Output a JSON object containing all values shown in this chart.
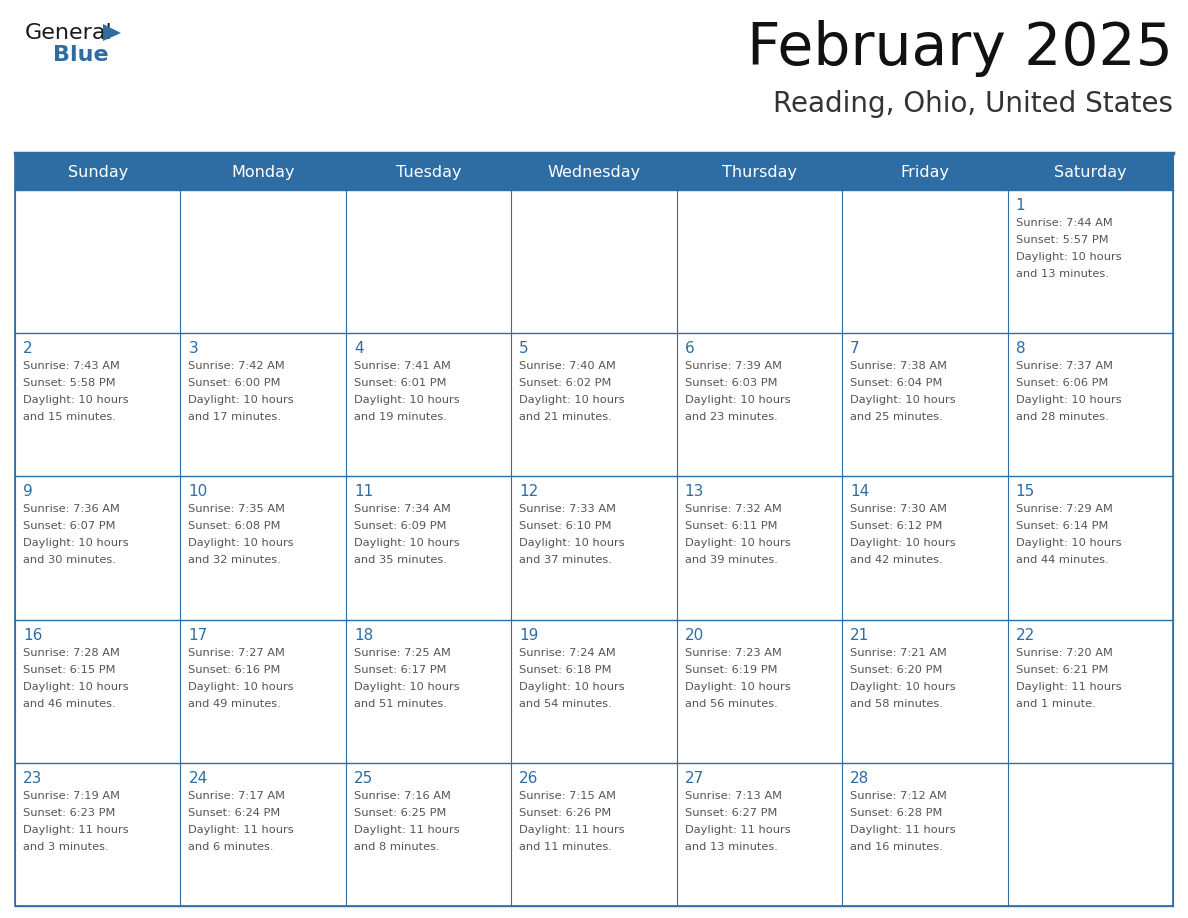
{
  "title": "February 2025",
  "subtitle": "Reading, Ohio, United States",
  "days_of_week": [
    "Sunday",
    "Monday",
    "Tuesday",
    "Wednesday",
    "Thursday",
    "Friday",
    "Saturday"
  ],
  "header_bg": "#2E6DA4",
  "header_text": "#FFFFFF",
  "cell_bg": "#FFFFFF",
  "day_num_color": "#2E6DA4",
  "info_text_color": "#555555",
  "border_color": "#2E6DA4",
  "logo_general_color": "#1a1a1a",
  "logo_blue_color": "#2E6DA4",
  "calendar_data": [
    [
      null,
      null,
      null,
      null,
      null,
      null,
      {
        "day": 1,
        "sunrise": "7:44 AM",
        "sunset": "5:57 PM",
        "daylight_l1": "Daylight: 10 hours",
        "daylight_l2": "and 13 minutes."
      }
    ],
    [
      {
        "day": 2,
        "sunrise": "7:43 AM",
        "sunset": "5:58 PM",
        "daylight_l1": "Daylight: 10 hours",
        "daylight_l2": "and 15 minutes."
      },
      {
        "day": 3,
        "sunrise": "7:42 AM",
        "sunset": "6:00 PM",
        "daylight_l1": "Daylight: 10 hours",
        "daylight_l2": "and 17 minutes."
      },
      {
        "day": 4,
        "sunrise": "7:41 AM",
        "sunset": "6:01 PM",
        "daylight_l1": "Daylight: 10 hours",
        "daylight_l2": "and 19 minutes."
      },
      {
        "day": 5,
        "sunrise": "7:40 AM",
        "sunset": "6:02 PM",
        "daylight_l1": "Daylight: 10 hours",
        "daylight_l2": "and 21 minutes."
      },
      {
        "day": 6,
        "sunrise": "7:39 AM",
        "sunset": "6:03 PM",
        "daylight_l1": "Daylight: 10 hours",
        "daylight_l2": "and 23 minutes."
      },
      {
        "day": 7,
        "sunrise": "7:38 AM",
        "sunset": "6:04 PM",
        "daylight_l1": "Daylight: 10 hours",
        "daylight_l2": "and 25 minutes."
      },
      {
        "day": 8,
        "sunrise": "7:37 AM",
        "sunset": "6:06 PM",
        "daylight_l1": "Daylight: 10 hours",
        "daylight_l2": "and 28 minutes."
      }
    ],
    [
      {
        "day": 9,
        "sunrise": "7:36 AM",
        "sunset": "6:07 PM",
        "daylight_l1": "Daylight: 10 hours",
        "daylight_l2": "and 30 minutes."
      },
      {
        "day": 10,
        "sunrise": "7:35 AM",
        "sunset": "6:08 PM",
        "daylight_l1": "Daylight: 10 hours",
        "daylight_l2": "and 32 minutes."
      },
      {
        "day": 11,
        "sunrise": "7:34 AM",
        "sunset": "6:09 PM",
        "daylight_l1": "Daylight: 10 hours",
        "daylight_l2": "and 35 minutes."
      },
      {
        "day": 12,
        "sunrise": "7:33 AM",
        "sunset": "6:10 PM",
        "daylight_l1": "Daylight: 10 hours",
        "daylight_l2": "and 37 minutes."
      },
      {
        "day": 13,
        "sunrise": "7:32 AM",
        "sunset": "6:11 PM",
        "daylight_l1": "Daylight: 10 hours",
        "daylight_l2": "and 39 minutes."
      },
      {
        "day": 14,
        "sunrise": "7:30 AM",
        "sunset": "6:12 PM",
        "daylight_l1": "Daylight: 10 hours",
        "daylight_l2": "and 42 minutes."
      },
      {
        "day": 15,
        "sunrise": "7:29 AM",
        "sunset": "6:14 PM",
        "daylight_l1": "Daylight: 10 hours",
        "daylight_l2": "and 44 minutes."
      }
    ],
    [
      {
        "day": 16,
        "sunrise": "7:28 AM",
        "sunset": "6:15 PM",
        "daylight_l1": "Daylight: 10 hours",
        "daylight_l2": "and 46 minutes."
      },
      {
        "day": 17,
        "sunrise": "7:27 AM",
        "sunset": "6:16 PM",
        "daylight_l1": "Daylight: 10 hours",
        "daylight_l2": "and 49 minutes."
      },
      {
        "day": 18,
        "sunrise": "7:25 AM",
        "sunset": "6:17 PM",
        "daylight_l1": "Daylight: 10 hours",
        "daylight_l2": "and 51 minutes."
      },
      {
        "day": 19,
        "sunrise": "7:24 AM",
        "sunset": "6:18 PM",
        "daylight_l1": "Daylight: 10 hours",
        "daylight_l2": "and 54 minutes."
      },
      {
        "day": 20,
        "sunrise": "7:23 AM",
        "sunset": "6:19 PM",
        "daylight_l1": "Daylight: 10 hours",
        "daylight_l2": "and 56 minutes."
      },
      {
        "day": 21,
        "sunrise": "7:21 AM",
        "sunset": "6:20 PM",
        "daylight_l1": "Daylight: 10 hours",
        "daylight_l2": "and 58 minutes."
      },
      {
        "day": 22,
        "sunrise": "7:20 AM",
        "sunset": "6:21 PM",
        "daylight_l1": "Daylight: 11 hours",
        "daylight_l2": "and 1 minute."
      }
    ],
    [
      {
        "day": 23,
        "sunrise": "7:19 AM",
        "sunset": "6:23 PM",
        "daylight_l1": "Daylight: 11 hours",
        "daylight_l2": "and 3 minutes."
      },
      {
        "day": 24,
        "sunrise": "7:17 AM",
        "sunset": "6:24 PM",
        "daylight_l1": "Daylight: 11 hours",
        "daylight_l2": "and 6 minutes."
      },
      {
        "day": 25,
        "sunrise": "7:16 AM",
        "sunset": "6:25 PM",
        "daylight_l1": "Daylight: 11 hours",
        "daylight_l2": "and 8 minutes."
      },
      {
        "day": 26,
        "sunrise": "7:15 AM",
        "sunset": "6:26 PM",
        "daylight_l1": "Daylight: 11 hours",
        "daylight_l2": "and 11 minutes."
      },
      {
        "day": 27,
        "sunrise": "7:13 AM",
        "sunset": "6:27 PM",
        "daylight_l1": "Daylight: 11 hours",
        "daylight_l2": "and 13 minutes."
      },
      {
        "day": 28,
        "sunrise": "7:12 AM",
        "sunset": "6:28 PM",
        "daylight_l1": "Daylight: 11 hours",
        "daylight_l2": "and 16 minutes."
      },
      null
    ]
  ]
}
